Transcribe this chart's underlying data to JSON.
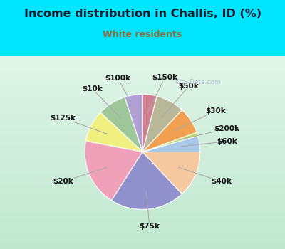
{
  "title": "Income distribution in Challis, ID (%)",
  "subtitle": "White residents",
  "title_color": "#1a1a2e",
  "subtitle_color": "#996633",
  "bg_top_color": "#00e5ff",
  "bg_chart_color_top": "#e8f8f0",
  "bg_chart_color_bottom": "#c8e8d8",
  "watermark": "City-Data.com",
  "labels": [
    "$100k",
    "$10k",
    "$125k",
    "$20k",
    "$75k",
    "$40k",
    "$60k",
    "$200k",
    "$30k",
    "$50k",
    "$150k"
  ],
  "values": [
    5.0,
    8.0,
    9.0,
    19.0,
    21.0,
    13.0,
    4.5,
    1.0,
    7.5,
    8.0,
    4.0
  ],
  "colors": [
    "#b0a0d5",
    "#9ec89a",
    "#f0f080",
    "#f0a0b8",
    "#9090cc",
    "#f5c8a0",
    "#a8c8e8",
    "#b8e060",
    "#f0a050",
    "#b8b898",
    "#d08090"
  ],
  "startangle": 90,
  "figsize": [
    4.0,
    3.5
  ],
  "dpi": 100
}
